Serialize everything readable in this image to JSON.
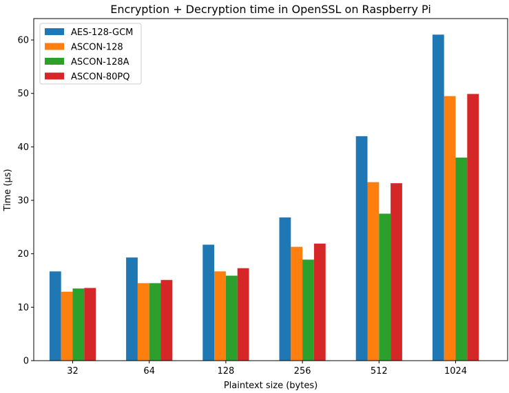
{
  "chart_data": {
    "type": "bar",
    "title": "Encryption + Decryption time in OpenSSL on Raspberry Pi",
    "xlabel": "Plaintext size (bytes)",
    "ylabel": "Time (µs)",
    "categories": [
      "32",
      "64",
      "128",
      "256",
      "512",
      "1024"
    ],
    "ylim": [
      0,
      64
    ],
    "yticks": [
      0,
      10,
      20,
      30,
      40,
      50,
      60
    ],
    "grid": false,
    "legend_position": "top-left",
    "series": [
      {
        "name": "AES-128-GCM",
        "color": "#1f77b4",
        "values": [
          16.7,
          19.3,
          21.7,
          26.8,
          42.0,
          61.0
        ]
      },
      {
        "name": "ASCON-128",
        "color": "#ff7f0e",
        "values": [
          12.9,
          14.5,
          16.7,
          21.3,
          33.4,
          49.5
        ]
      },
      {
        "name": "ASCON-128A",
        "color": "#2ca02c",
        "values": [
          13.5,
          14.5,
          15.9,
          18.9,
          27.5,
          38.0
        ]
      },
      {
        "name": "ASCON-80PQ",
        "color": "#d62728",
        "values": [
          13.6,
          15.1,
          17.3,
          21.9,
          33.2,
          49.9
        ]
      }
    ]
  }
}
